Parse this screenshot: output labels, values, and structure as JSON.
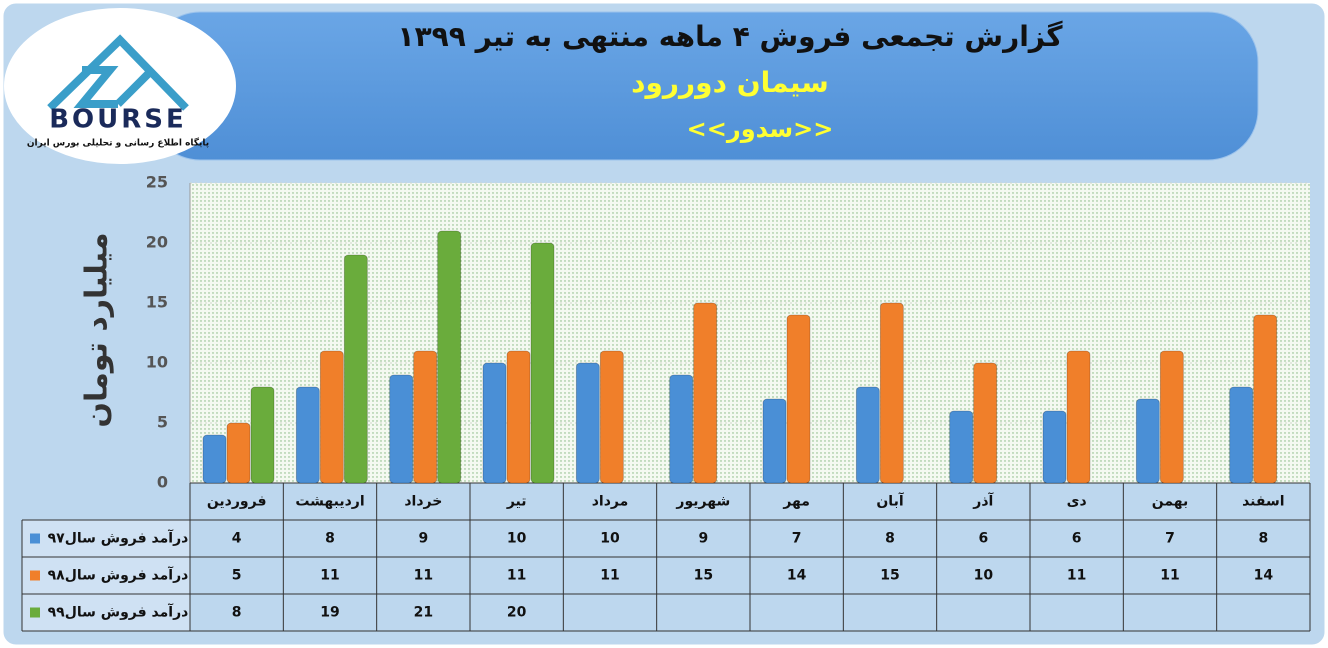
{
  "logo": {
    "brand": "BOURSE",
    "tagline": "پایگاه اطلاع رسانی و تحلیلی بورس ایران"
  },
  "chart_data": {
    "type": "bar",
    "title": "گزارش تجمعی فروش  ۴ ماهه منتهی به تیر ۱۳۹۹",
    "subtitle": "سیمان دوررود",
    "annotation": "<<سدور>>",
    "y_label": "میلیارد تومان",
    "categories": [
      "فروردین",
      "اردیبهشت",
      "خرداد",
      "تیر",
      "مرداد",
      "شهریور",
      "مهر",
      "آبان",
      "آذر",
      "دی",
      "بهمن",
      "اسفند"
    ],
    "series": [
      {
        "name": "درآمد فروش سال۹۷",
        "color": "#4a8fd6",
        "values": [
          4,
          8,
          9,
          10,
          10,
          9,
          7,
          8,
          6,
          6,
          7,
          8
        ]
      },
      {
        "name": "درآمد فروش سال۹۸",
        "color": "#f07f2a",
        "values": [
          5,
          11,
          11,
          11,
          11,
          15,
          14,
          15,
          10,
          11,
          11,
          14
        ]
      },
      {
        "name": "درآمد فروش سال۹۹",
        "color": "#6aac3c",
        "values": [
          8,
          19,
          21,
          20,
          null,
          null,
          null,
          null,
          null,
          null,
          null,
          null
        ]
      }
    ],
    "ylim": [
      0,
      25
    ],
    "yticks": [
      0,
      5,
      10,
      15,
      20,
      25
    ],
    "grid": true
  }
}
